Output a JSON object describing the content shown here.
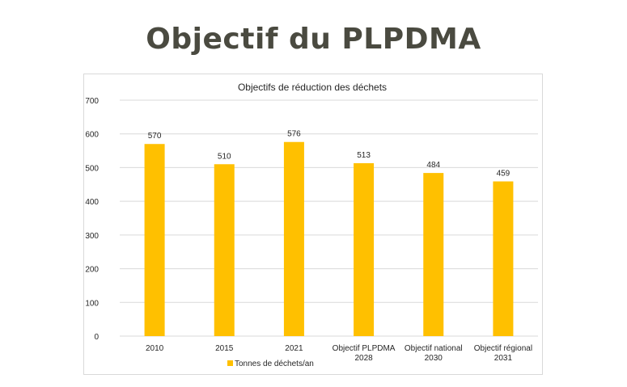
{
  "page": {
    "title": "Objectif du PLPDMA"
  },
  "chart_data": {
    "type": "bar",
    "title": "Objectifs de réduction des déchets",
    "categories": [
      [
        "2010"
      ],
      [
        "2015"
      ],
      [
        "2021"
      ],
      [
        "Objectif PLPDMA",
        "2028"
      ],
      [
        "Objectif national",
        "2030"
      ],
      [
        "Objectif régional",
        "2031"
      ]
    ],
    "series": [
      {
        "name": "Tonnes de déchets/an",
        "values": [
          570,
          510,
          576,
          513,
          484,
          459
        ]
      }
    ],
    "ylim": [
      0,
      700
    ],
    "yticks": [
      0,
      100,
      200,
      300,
      400,
      500,
      600,
      700
    ],
    "grid": true,
    "legend": "bottom",
    "colors": {
      "bar": "#ffc000",
      "grid": "#d9d9d9",
      "text": "#262626"
    }
  }
}
